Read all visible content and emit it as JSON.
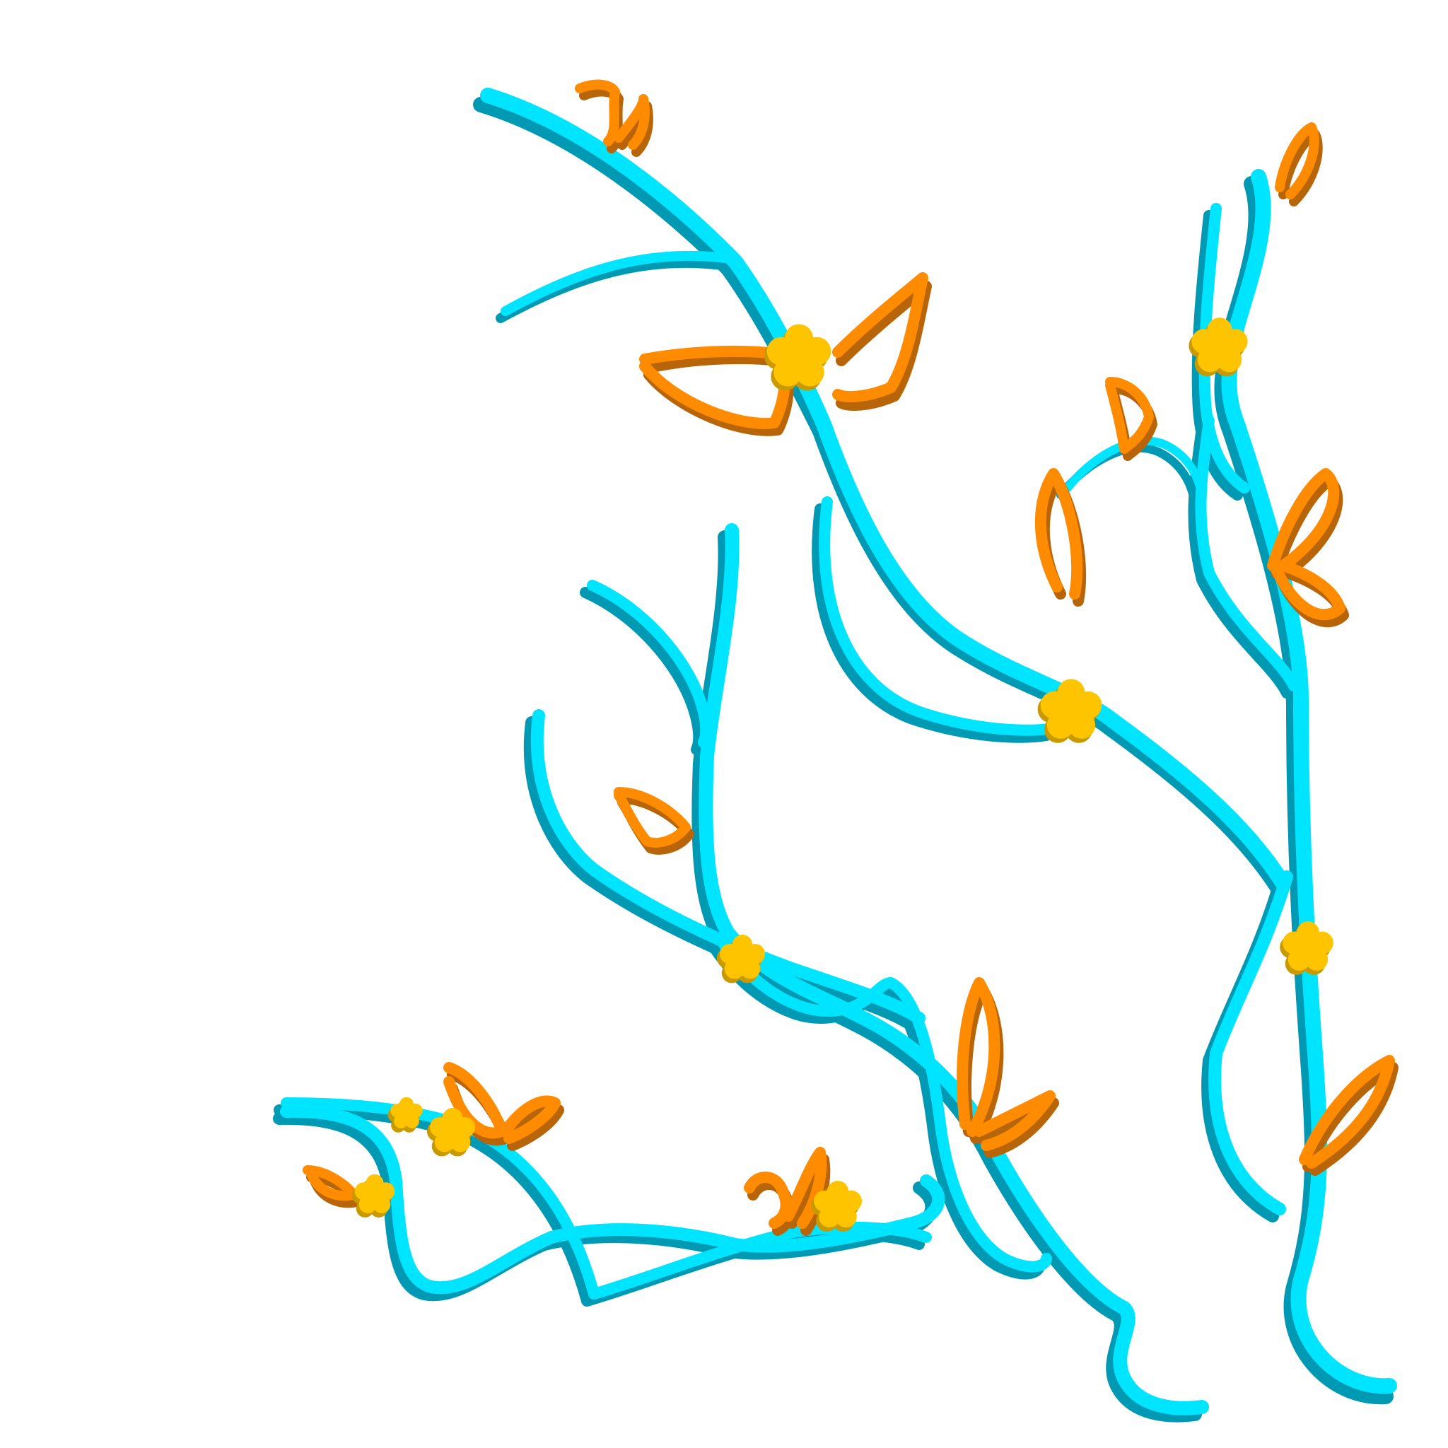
{
  "artwork": {
    "background_color": "#ffffff",
    "branch_color": "#00e5ff",
    "branch_shadow_color": "#0099b3",
    "leaf_color": "#ff8c00",
    "leaf_shadow_color": "#b8650a",
    "flower_color": "#ffc400",
    "flower_shadow_color": "#c99a00",
    "motif": "branch-with-leaves-and-flowers"
  }
}
